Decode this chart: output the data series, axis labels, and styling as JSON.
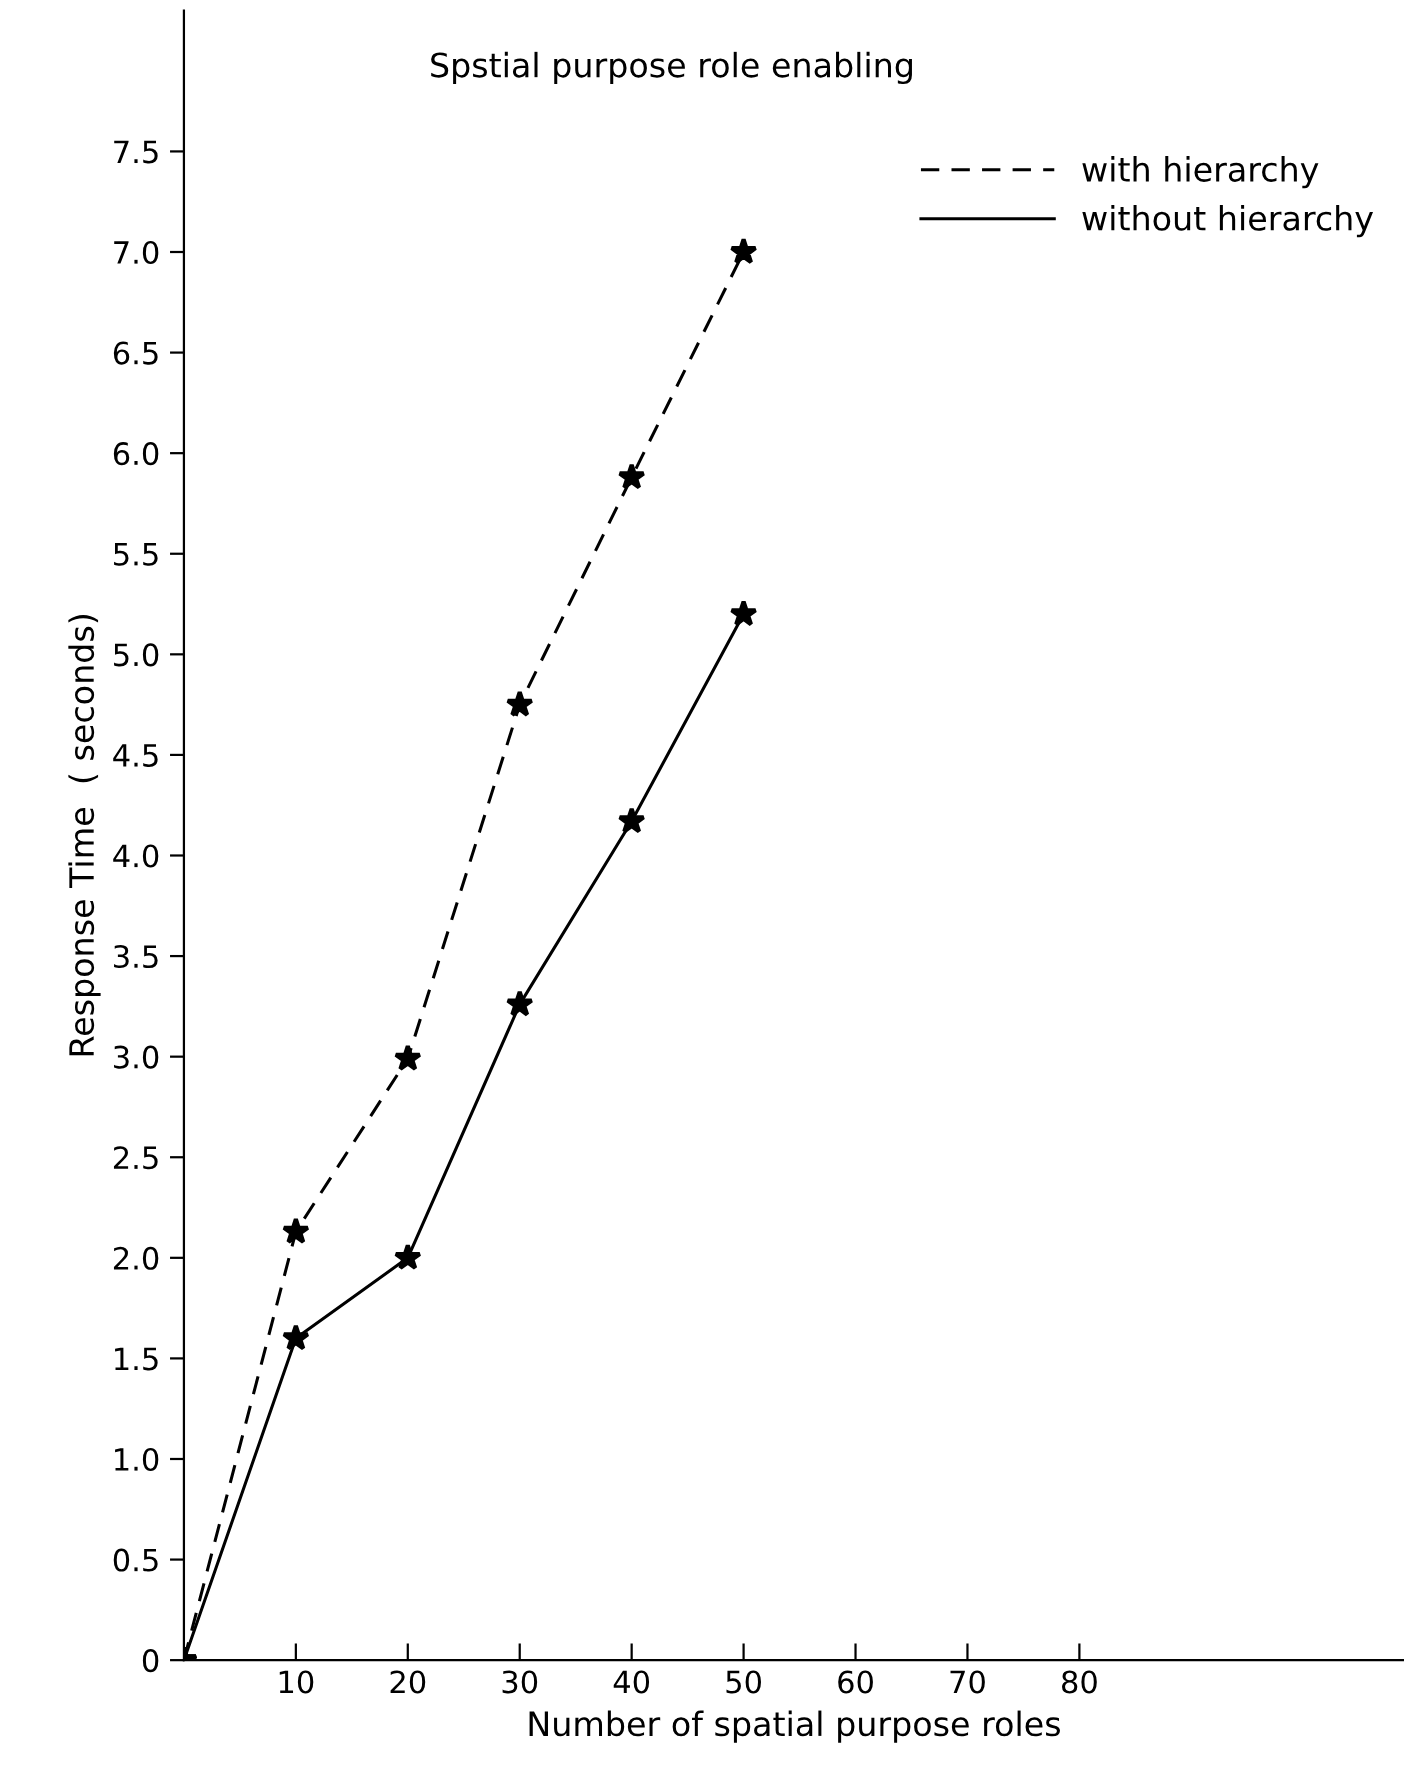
{
  "chart_data": {
    "type": "line",
    "title": "Spstial purpose role enabling",
    "xlabel": "Number of spatial purpose roles",
    "ylabel": "Response Time  ( seconds)",
    "x": [
      0,
      10,
      20,
      30,
      40,
      50
    ],
    "series": [
      {
        "name": "with hierarchy",
        "color": "#000000",
        "line_style": "dashed",
        "values": [
          0,
          2.13,
          2.99,
          4.75,
          5.88,
          7.0
        ]
      },
      {
        "name": "without hierarchy",
        "color": "#000000",
        "line_style": "solid",
        "values": [
          0,
          1.6,
          2.0,
          3.26,
          4.17,
          5.2
        ]
      }
    ],
    "marker": "star",
    "xlim": [
      0,
      109
    ],
    "ylim": [
      0,
      8.2
    ],
    "xticks": [
      10,
      20,
      30,
      40,
      50,
      60,
      70,
      80
    ],
    "yticks": [
      0,
      0.5,
      {
        "value": 1,
        "label": "1.0"
      },
      1.5,
      {
        "value": 2,
        "label": "2.0"
      },
      2.5,
      {
        "value": 3,
        "label": "3.0"
      },
      3.5,
      {
        "value": 4,
        "label": "4.0"
      },
      4.5,
      {
        "value": 5,
        "label": "5.0"
      },
      5.5,
      {
        "value": 6,
        "label": "6.0"
      },
      6.5,
      {
        "value": 7,
        "label": "7.0"
      },
      7.5
    ],
    "grid": false,
    "legend": "top right"
  }
}
